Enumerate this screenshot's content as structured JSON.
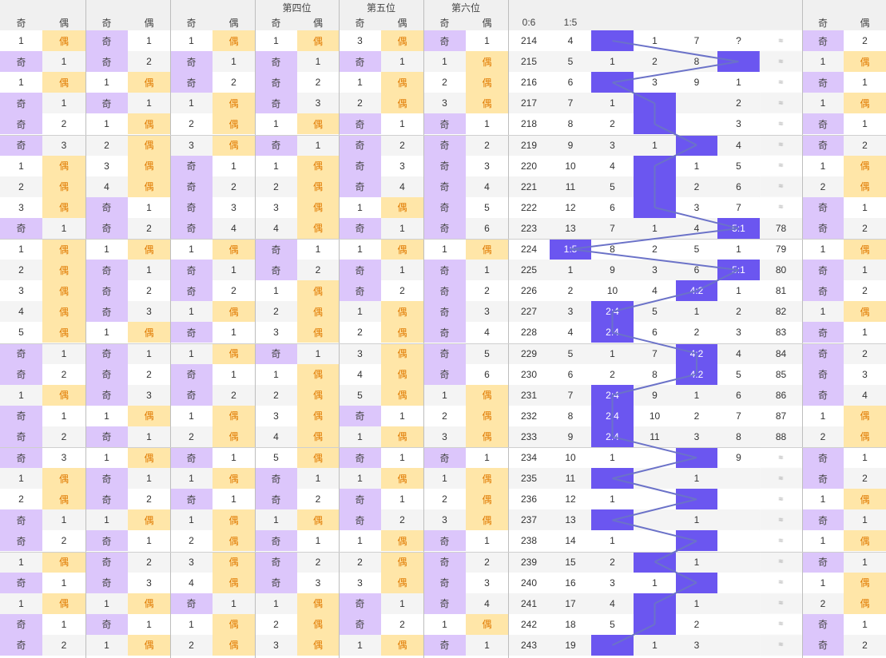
{
  "header": {
    "row1": {
      "pos4": "第四位",
      "pos5": "第五位",
      "pos6": "第六位"
    },
    "row2": [
      "奇",
      "偶",
      "奇",
      "偶",
      "奇",
      "偶",
      "奇",
      "偶",
      "奇",
      "偶",
      "奇",
      "偶",
      "0:6",
      "1:5",
      "",
      "",
      "",
      "",
      "",
      "奇",
      "偶"
    ]
  },
  "rows": [
    {
      "period": "214",
      "p": [
        "1",
        "偶",
        "奇",
        "1",
        "1",
        "偶",
        "1",
        "偶",
        "3",
        "偶",
        "奇",
        "1"
      ],
      "a": "214",
      "b": "4",
      "r": [
        1,
        1,
        7,
        "?"
      ],
      "mk": {
        "c": 0,
        "t": ""
      },
      "tail": "≈",
      "x": [
        "奇",
        "2"
      ]
    },
    {
      "p": [
        "奇",
        "1",
        "奇",
        "2",
        "奇",
        "1",
        "奇",
        "1",
        "奇",
        "1",
        "1",
        "偶"
      ],
      "a": "215",
      "b": "5",
      "r": [
        1,
        2,
        8,
        ""
      ],
      "mk": {
        "c": 3,
        "t": ""
      },
      "tail": "≈",
      "x": [
        "1",
        "偶"
      ]
    },
    {
      "p": [
        "1",
        "偶",
        "1",
        "偶",
        "奇",
        "2",
        "奇",
        "2",
        "1",
        "偶",
        "2",
        "偶"
      ],
      "a": "216",
      "b": "6",
      "r": [
        "",
        3,
        9,
        1
      ],
      "mk": {
        "c": 0,
        "t": ""
      },
      "tail": "≈",
      "x": [
        "奇",
        "1"
      ]
    },
    {
      "p": [
        "奇",
        "1",
        "奇",
        "1",
        "1",
        "偶",
        "奇",
        "3",
        "2",
        "偶",
        "3",
        "偶"
      ],
      "a": "217",
      "b": "7",
      "r": [
        1,
        "",
        "",
        2
      ],
      "mk": {
        "c": 1,
        "t": ""
      },
      "tail": "≈",
      "x": [
        "1",
        "偶"
      ]
    },
    {
      "p": [
        "奇",
        "2",
        "1",
        "偶",
        "2",
        "偶",
        "1",
        "偶",
        "奇",
        "1",
        "奇",
        "1"
      ],
      "a": "218",
      "b": "8",
      "r": [
        2,
        "",
        "",
        3
      ],
      "mk": {
        "c": 1,
        "t": ""
      },
      "tail": "≈",
      "x": [
        "奇",
        "1"
      ]
    },
    {
      "p": [
        "奇",
        "3",
        "2",
        "偶",
        "3",
        "偶",
        "奇",
        "1",
        "奇",
        "2",
        "奇",
        "2"
      ],
      "a": "219",
      "b": "9",
      "r": [
        3,
        1,
        "",
        4
      ],
      "mk": {
        "c": 2,
        "t": ""
      },
      "tail": "≈",
      "x": [
        "奇",
        "2"
      ]
    },
    {
      "p": [
        "1",
        "偶",
        "3",
        "偶",
        "奇",
        "1",
        "1",
        "偶",
        "奇",
        "3",
        "奇",
        "3"
      ],
      "a": "220",
      "b": "10",
      "r": [
        4,
        "",
        1,
        5
      ],
      "mk": {
        "c": 1,
        "t": ""
      },
      "tail": "≈",
      "x": [
        "1",
        "偶"
      ]
    },
    {
      "p": [
        "2",
        "偶",
        "4",
        "偶",
        "奇",
        "2",
        "2",
        "偶",
        "奇",
        "4",
        "奇",
        "4"
      ],
      "a": "221",
      "b": "11",
      "r": [
        5,
        "",
        2,
        6
      ],
      "mk": {
        "c": 1,
        "t": ""
      },
      "tail": "≈",
      "x": [
        "2",
        "偶"
      ]
    },
    {
      "p": [
        "3",
        "偶",
        "奇",
        "1",
        "奇",
        "3",
        "3",
        "偶",
        "1",
        "偶",
        "奇",
        "5"
      ],
      "a": "222",
      "b": "12",
      "r": [
        6,
        "",
        3,
        7
      ],
      "mk": {
        "c": 1,
        "t": ""
      },
      "tail": "≈",
      "x": [
        "奇",
        "1"
      ]
    },
    {
      "p": [
        "奇",
        "1",
        "奇",
        "2",
        "奇",
        "4",
        "4",
        "偶",
        "奇",
        "1",
        "奇",
        "6"
      ],
      "a": "223",
      "b": "13",
      "r": [
        7,
        1,
        4,
        ""
      ],
      "mk": {
        "c": 3,
        "t": "5:1"
      },
      "tail": "78",
      "x": [
        "奇",
        "2"
      ]
    },
    {
      "p": [
        "1",
        "偶",
        "1",
        "偶",
        "1",
        "偶",
        "奇",
        "1",
        "1",
        "偶",
        "1",
        "偶"
      ],
      "a": "224",
      "b": "1:5",
      "r": [
        8,
        2,
        5,
        1
      ],
      "mk": {
        "c": -1,
        "t": ""
      },
      "tail": "79",
      "x": [
        "1",
        "偶"
      ]
    },
    {
      "p": [
        "2",
        "偶",
        "奇",
        "1",
        "奇",
        "1",
        "奇",
        "2",
        "奇",
        "1",
        "奇",
        "1"
      ],
      "a": "225",
      "b": "1",
      "r": [
        9,
        3,
        6,
        ""
      ],
      "mk": {
        "c": 3,
        "t": "5:1"
      },
      "tail": "80",
      "x": [
        "奇",
        "1"
      ]
    },
    {
      "p": [
        "3",
        "偶",
        "奇",
        "2",
        "奇",
        "2",
        "1",
        "偶",
        "奇",
        "2",
        "奇",
        "2"
      ],
      "a": "226",
      "b": "2",
      "r": [
        10,
        4,
        "",
        1
      ],
      "mk": {
        "c": 2,
        "t": "4:2"
      },
      "tail": "81",
      "x": [
        "奇",
        "2"
      ]
    },
    {
      "p": [
        "4",
        "偶",
        "奇",
        "3",
        "1",
        "偶",
        "2",
        "偶",
        "1",
        "偶",
        "奇",
        "3"
      ],
      "a": "227",
      "b": "3",
      "r": [
        "",
        5,
        1,
        2
      ],
      "mk": {
        "c": 0,
        "t": "2:4"
      },
      "tail": "82",
      "x": [
        "1",
        "偶"
      ]
    },
    {
      "p": [
        "5",
        "偶",
        "1",
        "偶",
        "奇",
        "1",
        "3",
        "偶",
        "2",
        "偶",
        "奇",
        "4"
      ],
      "a": "228",
      "b": "4",
      "r": [
        "",
        6,
        2,
        3
      ],
      "mk": {
        "c": 0,
        "t": "2:4"
      },
      "tail": "83",
      "x": [
        "奇",
        "1"
      ]
    },
    {
      "p": [
        "奇",
        "1",
        "奇",
        "1",
        "1",
        "偶",
        "奇",
        "1",
        "3",
        "偶",
        "奇",
        "5"
      ],
      "a": "229",
      "b": "5",
      "r": [
        1,
        7,
        "",
        4
      ],
      "mk": {
        "c": 2,
        "t": "4:2"
      },
      "tail": "84",
      "x": [
        "奇",
        "2"
      ]
    },
    {
      "p": [
        "奇",
        "2",
        "奇",
        "2",
        "奇",
        "1",
        "1",
        "偶",
        "4",
        "偶",
        "奇",
        "6"
      ],
      "a": "230",
      "b": "6",
      "r": [
        2,
        8,
        "",
        5
      ],
      "mk": {
        "c": 2,
        "t": "4:2"
      },
      "tail": "85",
      "x": [
        "奇",
        "3"
      ]
    },
    {
      "p": [
        "1",
        "偶",
        "奇",
        "3",
        "奇",
        "2",
        "2",
        "偶",
        "5",
        "偶",
        "1",
        "偶"
      ],
      "a": "231",
      "b": "7",
      "r": [
        "",
        9,
        1,
        6
      ],
      "mk": {
        "c": 0,
        "t": "2:4"
      },
      "tail": "86",
      "x": [
        "奇",
        "4"
      ]
    },
    {
      "p": [
        "奇",
        "1",
        "1",
        "偶",
        "1",
        "偶",
        "3",
        "偶",
        "奇",
        "1",
        "2",
        "偶"
      ],
      "a": "232",
      "b": "8",
      "r": [
        "",
        10,
        2,
        7
      ],
      "mk": {
        "c": 0,
        "t": "2:4"
      },
      "tail": "87",
      "x": [
        "1",
        "偶"
      ]
    },
    {
      "p": [
        "奇",
        "2",
        "奇",
        "1",
        "2",
        "偶",
        "4",
        "偶",
        "1",
        "偶",
        "3",
        "偶"
      ],
      "a": "233",
      "b": "9",
      "r": [
        "",
        11,
        3,
        8
      ],
      "mk": {
        "c": 0,
        "t": "2:4"
      },
      "tail": "88",
      "x": [
        "2",
        "偶"
      ]
    },
    {
      "p": [
        "奇",
        "3",
        "1",
        "偶",
        "奇",
        "1",
        "5",
        "偶",
        "奇",
        "1",
        "奇",
        "1"
      ],
      "a": "234",
      "b": "10",
      "r": [
        1,
        "",
        "",
        9
      ],
      "mk": {
        "c": 2,
        "t": ""
      },
      "tail": "≈",
      "x": [
        "奇",
        "1"
      ]
    },
    {
      "p": [
        "1",
        "偶",
        "奇",
        "1",
        "1",
        "偶",
        "奇",
        "1",
        "1",
        "偶",
        "1",
        "偶"
      ],
      "a": "235",
      "b": "11",
      "r": [
        "",
        "",
        1,
        ""
      ],
      "mk": {
        "c": 0,
        "t": ""
      },
      "tail": "≈",
      "x": [
        "奇",
        "2"
      ]
    },
    {
      "p": [
        "2",
        "偶",
        "奇",
        "2",
        "奇",
        "1",
        "奇",
        "2",
        "奇",
        "1",
        "2",
        "偶"
      ],
      "a": "236",
      "b": "12",
      "r": [
        1,
        "",
        "",
        ""
      ],
      "mk": {
        "c": 2,
        "t": ""
      },
      "tail": "≈",
      "x": [
        "1",
        "偶"
      ]
    },
    {
      "p": [
        "奇",
        "1",
        "1",
        "偶",
        "1",
        "偶",
        "1",
        "偶",
        "奇",
        "2",
        "3",
        "偶"
      ],
      "a": "237",
      "b": "13",
      "r": [
        "",
        "",
        1,
        ""
      ],
      "mk": {
        "c": 0,
        "t": ""
      },
      "tail": "≈",
      "x": [
        "奇",
        "1"
      ]
    },
    {
      "p": [
        "奇",
        "2",
        "奇",
        "1",
        "2",
        "偶",
        "奇",
        "1",
        "1",
        "偶",
        "奇",
        "1"
      ],
      "a": "238",
      "b": "14",
      "r": [
        1,
        "",
        "",
        ""
      ],
      "mk": {
        "c": 2,
        "t": ""
      },
      "tail": "≈",
      "x": [
        "1",
        "偶"
      ]
    },
    {
      "p": [
        "1",
        "偶",
        "奇",
        "2",
        "3",
        "偶",
        "奇",
        "2",
        "2",
        "偶",
        "奇",
        "2"
      ],
      "a": "239",
      "b": "15",
      "r": [
        2,
        "",
        1,
        ""
      ],
      "mk": {
        "c": 1,
        "t": ""
      },
      "tail": "≈",
      "x": [
        "奇",
        "1"
      ]
    },
    {
      "p": [
        "奇",
        "1",
        "奇",
        "3",
        "4",
        "偶",
        "奇",
        "3",
        "3",
        "偶",
        "奇",
        "3"
      ],
      "a": "240",
      "b": "16",
      "r": [
        3,
        1,
        "",
        ""
      ],
      "mk": {
        "c": 2,
        "t": ""
      },
      "tail": "≈",
      "x": [
        "1",
        "偶"
      ]
    },
    {
      "p": [
        "1",
        "偶",
        "1",
        "偶",
        "奇",
        "1",
        "1",
        "偶",
        "奇",
        "1",
        "奇",
        "4"
      ],
      "a": "241",
      "b": "17",
      "r": [
        4,
        "",
        1,
        ""
      ],
      "mk": {
        "c": 1,
        "t": ""
      },
      "tail": "≈",
      "x": [
        "2",
        "偶"
      ]
    },
    {
      "p": [
        "奇",
        "1",
        "奇",
        "1",
        "1",
        "偶",
        "2",
        "偶",
        "奇",
        "2",
        "1",
        "偶"
      ],
      "a": "242",
      "b": "18",
      "r": [
        5,
        "",
        2,
        ""
      ],
      "mk": {
        "c": 1,
        "t": ""
      },
      "tail": "≈",
      "x": [
        "奇",
        "1"
      ]
    },
    {
      "p": [
        "奇",
        "2",
        "1",
        "偶",
        "2",
        "偶",
        "3",
        "偶",
        "1",
        "偶",
        "奇",
        "1"
      ],
      "a": "243",
      "b": "19",
      "r": [
        "",
        1,
        3,
        ""
      ],
      "mk": {
        "c": 0,
        "t": ""
      },
      "tail": "≈",
      "x": [
        "奇",
        "2"
      ]
    }
  ],
  "colors": {
    "odd": "#dcc6fb",
    "even": "#ffe6a8",
    "marker": "#6b56f0",
    "line": "#6b72c8"
  }
}
